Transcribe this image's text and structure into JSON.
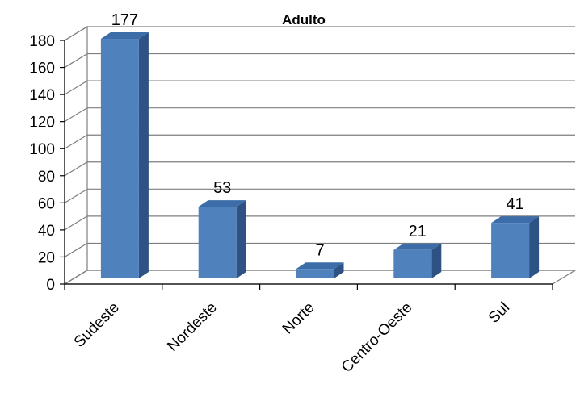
{
  "chart_data": {
    "type": "bar",
    "title": "Adulto",
    "categories": [
      "Sudeste",
      "Nordeste",
      "Norte",
      "Centro-Oeste",
      "Sul"
    ],
    "values": [
      177,
      53,
      7,
      21,
      41
    ],
    "data_labels": [
      "177",
      "53",
      "7",
      "21",
      "41"
    ],
    "ylim": [
      0,
      180
    ],
    "yticks": [
      "0",
      "20",
      "40",
      "60",
      "80",
      "100",
      "120",
      "140",
      "160",
      "180"
    ],
    "grid": true,
    "style": "3d-column",
    "colors": {
      "front": "#4F81BD",
      "side": "#2E5283",
      "top": "#3D6DA8",
      "grid": "#7F7F7F"
    }
  }
}
